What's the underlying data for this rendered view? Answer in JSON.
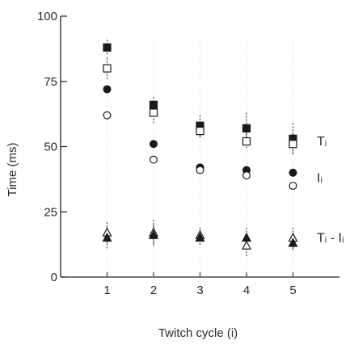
{
  "chart_data": {
    "type": "scatter",
    "xlabel": "Twitch cycle (i)",
    "ylabel": "Time (ms)",
    "x": [
      1,
      2,
      3,
      4,
      5
    ],
    "xticks": [
      "1",
      "2",
      "3",
      "4",
      "5"
    ],
    "xlim": [
      0,
      6
    ],
    "ylim": [
      0,
      100
    ],
    "yticks": [
      "0",
      "25",
      "50",
      "75",
      "100"
    ],
    "grid": false,
    "series": [
      {
        "group": "T",
        "marker": "square-filled",
        "values": [
          88,
          66,
          58,
          57,
          53
        ],
        "err": [
          3,
          3,
          4,
          6,
          6
        ]
      },
      {
        "group": "T",
        "marker": "square-open",
        "values": [
          80,
          63,
          56,
          52,
          51
        ],
        "err": [
          4,
          4,
          3,
          3,
          4
        ]
      },
      {
        "group": "I",
        "marker": "circle-filled",
        "values": [
          72,
          51,
          42,
          41,
          40
        ],
        "err": [
          0,
          0,
          0,
          0,
          0
        ]
      },
      {
        "group": "I",
        "marker": "circle-open",
        "values": [
          62,
          45,
          41,
          39,
          35
        ],
        "err": [
          0,
          0,
          0,
          0,
          0
        ]
      },
      {
        "group": "T-I",
        "marker": "triangle-open",
        "values": [
          17,
          17,
          16,
          12,
          15
        ],
        "err": [
          4,
          5,
          3,
          4,
          4
        ]
      },
      {
        "group": "T-I",
        "marker": "triangle-filled",
        "values": [
          15,
          16,
          15,
          15,
          13
        ],
        "err": [
          4,
          4,
          3,
          4,
          3
        ]
      }
    ],
    "series_labels": [
      {
        "text": "Tᵢ",
        "y": 52
      },
      {
        "text": "Iᵢ",
        "y": 38
      },
      {
        "text": "Tᵢ - Iᵢ",
        "y": 15
      }
    ]
  }
}
